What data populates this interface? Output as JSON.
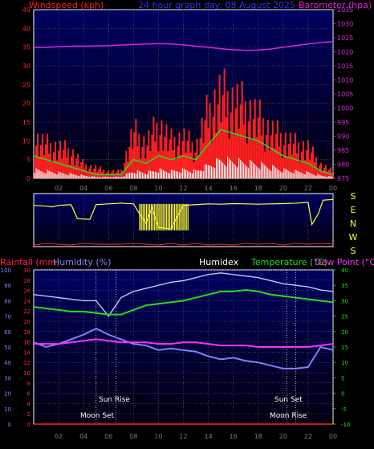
{
  "header": {
    "windspeed_label": "Windspeed (kph)",
    "title": "24 hour graph day: 08 August 2025",
    "barometer_label": "Barometer (hpa)"
  },
  "lower_header": {
    "rainfall_label": "Rainfall (mm)",
    "humidity_label": "Humidity (%)",
    "humidex_label": "Humidex",
    "temperature_label": "Temperature (°C)",
    "dewpoint_label": "Dew Point (°C)"
  },
  "direction_letters": [
    "S",
    "E",
    "N",
    "W",
    "S"
  ],
  "events": {
    "moon_set": "Moon Set",
    "sun_rise": "Sun Rise",
    "sun_set": "Sun Set",
    "moon_rise": "Moon Rise"
  },
  "colors": {
    "windspeed": "#ff2020",
    "wind_avg": "#20e020",
    "wind_white": "#ffffff",
    "barometer": "#e020e0",
    "direction": "#ffff30",
    "humidity": "#8080ff",
    "humidex": "#d0d0ff",
    "temperature": "#20e020",
    "dewpoint": "#ff30ff",
    "rainfall": "#ff2040",
    "grid": "#7a7a7a",
    "panel_top": "#000060",
    "panel_bottom": "#000010"
  },
  "chart_data": [
    {
      "type": "line",
      "name": "wind_pressure",
      "x_ticks": [
        "02",
        "04",
        "06",
        "08",
        "10",
        "12",
        "14",
        "16",
        "18",
        "20",
        "22",
        "00"
      ],
      "left_axis": {
        "ylim": [
          0,
          45
        ],
        "ticks": [
          0,
          5,
          10,
          15,
          20,
          25,
          30,
          35,
          40,
          45
        ]
      },
      "right_axis": {
        "ylim": [
          975,
          1035
        ],
        "ticks": [
          975,
          980,
          985,
          990,
          995,
          1000,
          1005,
          1010,
          1015,
          1020,
          1025,
          1030,
          1035
        ]
      },
      "x_hours": [
        0,
        1,
        2,
        3,
        4,
        5,
        6,
        7,
        8,
        9,
        10,
        11,
        12,
        13,
        14,
        15,
        16,
        17,
        18,
        19,
        20,
        21,
        22,
        23,
        24
      ],
      "windspeed_gust": [
        12,
        10,
        9,
        8,
        4,
        3,
        2,
        2,
        14,
        10,
        16,
        11,
        12,
        9,
        20,
        25,
        23,
        21,
        18,
        14,
        12,
        10,
        9,
        4,
        2
      ],
      "windspeed_avg": [
        6,
        5,
        4,
        3,
        2,
        1,
        1,
        1,
        5,
        4,
        6,
        5,
        6,
        5,
        9,
        13,
        12,
        11,
        10,
        8,
        6,
        5,
        4,
        2,
        1
      ],
      "barometer": [
        1021.5,
        1021.6,
        1021.8,
        1022.0,
        1022.0,
        1022.1,
        1022.2,
        1022.4,
        1022.6,
        1022.8,
        1022.9,
        1022.8,
        1022.5,
        1022.0,
        1021.6,
        1021.1,
        1020.7,
        1020.5,
        1020.6,
        1021.0,
        1021.6,
        1022.2,
        1022.8,
        1023.3,
        1023.6
      ]
    },
    {
      "type": "line",
      "name": "wind_direction",
      "direction_labels": [
        "S",
        "E",
        "N",
        "W",
        "S"
      ],
      "ylim": [
        0,
        360
      ],
      "x_hours": [
        0,
        1,
        1.5,
        2,
        3,
        3.5,
        4.5,
        5,
        6,
        7,
        8,
        8.5,
        9,
        9.5,
        10,
        11,
        12,
        13,
        14,
        15,
        16,
        17,
        18,
        19,
        20,
        21,
        22,
        22.3,
        22.8,
        23.2,
        24
      ],
      "direction_deg": [
        80,
        85,
        90,
        80,
        75,
        170,
        175,
        75,
        70,
        65,
        70,
        140,
        200,
        95,
        230,
        240,
        80,
        75,
        70,
        72,
        68,
        70,
        72,
        70,
        68,
        65,
        60,
        210,
        140,
        45,
        40
      ]
    },
    {
      "type": "line",
      "name": "temperature_humidity",
      "x_ticks": [
        "02",
        "04",
        "06",
        "08",
        "10",
        "12",
        "14",
        "16",
        "18",
        "20",
        "22",
        "00"
      ],
      "humidity_axis": {
        "ylim": [
          0,
          100
        ],
        "ticks": [
          0,
          10,
          20,
          30,
          40,
          50,
          60,
          70,
          80,
          90,
          100
        ]
      },
      "rainfall_axis": {
        "ylim": [
          0,
          30
        ],
        "ticks": [
          0,
          2,
          4,
          6,
          8,
          10,
          12,
          14,
          16,
          18,
          20,
          22,
          24,
          26,
          28,
          30
        ]
      },
      "temperature_axis": {
        "ylim": [
          -10,
          40
        ],
        "ticks": [
          -10,
          -5,
          0,
          5,
          10,
          15,
          20,
          25,
          30,
          35,
          40
        ]
      },
      "x_hours": [
        0,
        1,
        2,
        3,
        4,
        5,
        6,
        7,
        8,
        9,
        10,
        11,
        12,
        13,
        14,
        15,
        16,
        17,
        18,
        19,
        20,
        21,
        22,
        23,
        24
      ],
      "humidex": [
        32,
        31.5,
        31,
        30.5,
        30,
        30,
        25,
        31,
        33,
        34,
        35,
        36,
        36.5,
        37.5,
        38.5,
        39,
        38.5,
        38,
        37.5,
        36.5,
        35.5,
        35,
        34.5,
        33.5,
        33
      ],
      "temperature": [
        28,
        27.5,
        27,
        26.5,
        26.5,
        26,
        25.5,
        25.5,
        27,
        28.5,
        29,
        29.5,
        30,
        31,
        32,
        33,
        33,
        33.5,
        33,
        32,
        31.5,
        31,
        30.5,
        30,
        29.5
      ],
      "humidity": [
        53,
        50,
        52,
        55,
        58,
        62,
        58,
        55,
        52,
        51,
        48,
        49,
        48,
        47,
        44,
        42,
        43,
        41,
        40,
        38,
        36,
        36,
        37,
        50,
        48
      ],
      "dewpoint": [
        16,
        16,
        16,
        16.5,
        17,
        17.5,
        17,
        16.5,
        16.5,
        16.5,
        16,
        16,
        16.5,
        16.5,
        16,
        15.5,
        15.5,
        15.5,
        15,
        15,
        15,
        15,
        15,
        15.5,
        16
      ],
      "rainfall": [
        0,
        0,
        0,
        0,
        0,
        0,
        0,
        0,
        0,
        0,
        0,
        0,
        0,
        0,
        0,
        0,
        0,
        0,
        0,
        0,
        0,
        0,
        0,
        0,
        0
      ],
      "events_hours": {
        "moon_set": 5.0,
        "sun_rise": 6.6,
        "sun_set": 20.3,
        "moon_rise": 21.0
      }
    }
  ]
}
